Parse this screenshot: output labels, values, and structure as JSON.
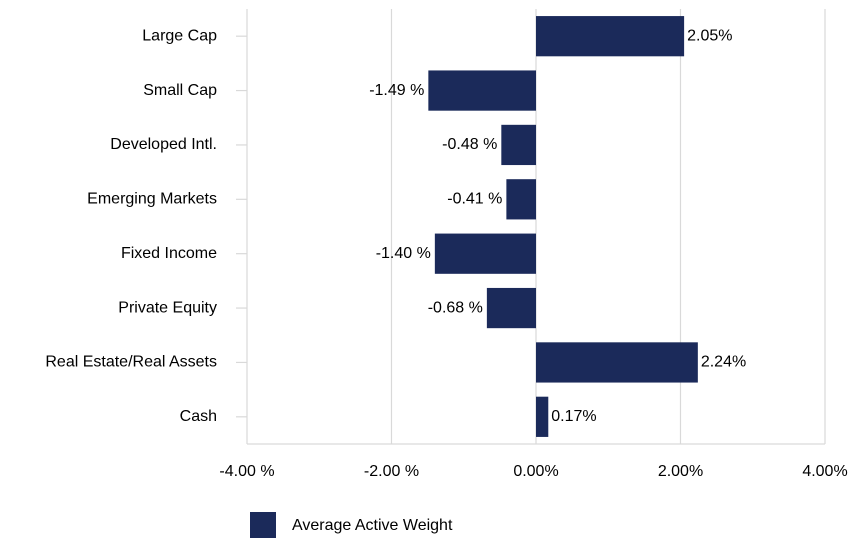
{
  "chart_data": {
    "type": "bar",
    "orientation": "horizontal",
    "categories": [
      "Large Cap",
      "Small Cap",
      "Developed Intl.",
      "Emerging Markets",
      "Fixed Income",
      "Private Equity",
      "Real Estate/Real Assets",
      "Cash"
    ],
    "series": [
      {
        "name": "Average Active Weight",
        "color": "#1b2a5a",
        "values": [
          2.05,
          -1.49,
          -0.48,
          -0.41,
          -1.4,
          -0.68,
          2.24,
          0.17
        ],
        "value_labels": [
          "2.05%",
          "-1.49 %",
          "-0.48 %",
          "-0.41 %",
          "-1.40 %",
          "-0.68 %",
          "2.24%",
          "0.17%"
        ]
      }
    ],
    "xlim": [
      -4,
      4
    ],
    "xticks": [
      {
        "value": -4,
        "label": "-4.00 %"
      },
      {
        "value": -2,
        "label": "-2.00 %"
      },
      {
        "value": 0,
        "label": "0.00%"
      },
      {
        "value": 2,
        "label": "2.00%"
      },
      {
        "value": 4,
        "label": "4.00%"
      }
    ],
    "grid": true,
    "legend": "bottom"
  }
}
